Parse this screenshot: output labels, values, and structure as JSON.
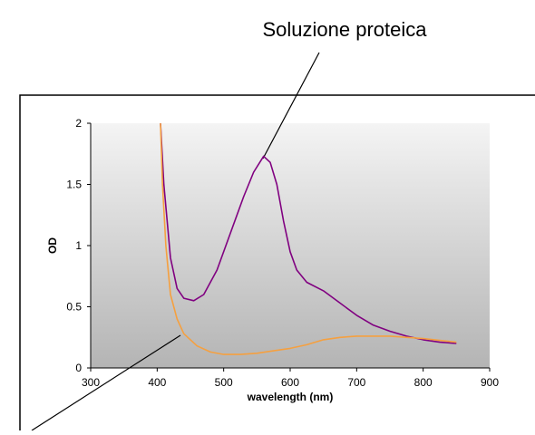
{
  "chart_data": {
    "type": "line",
    "annotations": [
      {
        "text": "Soluzione proteica"
      }
    ],
    "xlabel": "wavelength (nm)",
    "ylabel": "OD",
    "xlim": [
      300,
      900
    ],
    "xticks": [
      300,
      400,
      500,
      600,
      700,
      800,
      900
    ],
    "ylim": [
      0,
      2
    ],
    "yticks": [
      0,
      0.5,
      1,
      1.5,
      2
    ],
    "grid": false,
    "series": [
      {
        "color": "#800080",
        "x": [
          405,
          410,
          420,
          430,
          440,
          455,
          470,
          490,
          510,
          530,
          545,
          560,
          570,
          580,
          590,
          600,
          610,
          625,
          650,
          675,
          700,
          725,
          750,
          775,
          800,
          825,
          850
        ],
        "values": [
          2,
          1.5,
          0.9,
          0.65,
          0.57,
          0.55,
          0.6,
          0.8,
          1.1,
          1.4,
          1.6,
          1.73,
          1.68,
          1.5,
          1.2,
          0.95,
          0.8,
          0.7,
          0.63,
          0.53,
          0.43,
          0.35,
          0.3,
          0.26,
          0.23,
          0.21,
          0.2
        ]
      },
      {
        "color": "#f5a040",
        "x": [
          405,
          408,
          413,
          420,
          430,
          440,
          460,
          480,
          500,
          525,
          550,
          575,
          600,
          625,
          650,
          675,
          700,
          750,
          800,
          850
        ],
        "values": [
          2,
          1.5,
          1.0,
          0.6,
          0.4,
          0.28,
          0.18,
          0.13,
          0.11,
          0.11,
          0.12,
          0.14,
          0.16,
          0.19,
          0.23,
          0.25,
          0.26,
          0.26,
          0.24,
          0.21
        ]
      }
    ]
  }
}
